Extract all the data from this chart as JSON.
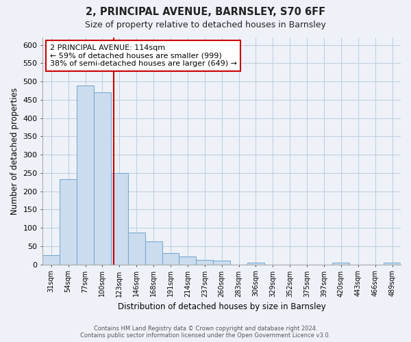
{
  "title": "2, PRINCIPAL AVENUE, BARNSLEY, S70 6FF",
  "subtitle": "Size of property relative to detached houses in Barnsley",
  "xlabel": "Distribution of detached houses by size in Barnsley",
  "ylabel": "Number of detached properties",
  "bar_labels": [
    "31sqm",
    "54sqm",
    "77sqm",
    "100sqm",
    "123sqm",
    "146sqm",
    "168sqm",
    "191sqm",
    "214sqm",
    "237sqm",
    "260sqm",
    "283sqm",
    "306sqm",
    "329sqm",
    "352sqm",
    "375sqm",
    "397sqm",
    "420sqm",
    "443sqm",
    "466sqm",
    "489sqm"
  ],
  "bar_heights": [
    25,
    233,
    490,
    470,
    250,
    88,
    63,
    31,
    22,
    13,
    10,
    0,
    5,
    0,
    0,
    0,
    0,
    5,
    0,
    0,
    5
  ],
  "bar_color": "#ccdcef",
  "bar_edge_color": "#7aaacf",
  "vline_x": 3.65,
  "vline_color": "#cc0000",
  "annotation_text": "2 PRINCIPAL AVENUE: 114sqm\n← 59% of detached houses are smaller (999)\n38% of semi-detached houses are larger (649) →",
  "annotation_box_facecolor": "#ffffff",
  "annotation_box_edgecolor": "#cc0000",
  "ylim": [
    0,
    620
  ],
  "yticks": [
    0,
    50,
    100,
    150,
    200,
    250,
    300,
    350,
    400,
    450,
    500,
    550,
    600
  ],
  "grid_color": "#c0cfe0",
  "bg_color": "#eef2f8",
  "footer_line1": "Contains HM Land Registry data © Crown copyright and database right 2024.",
  "footer_line2": "Contains public sector information licensed under the Open Government Licence v3.0.",
  "fig_width": 6.0,
  "fig_height": 5.0,
  "dpi": 100
}
